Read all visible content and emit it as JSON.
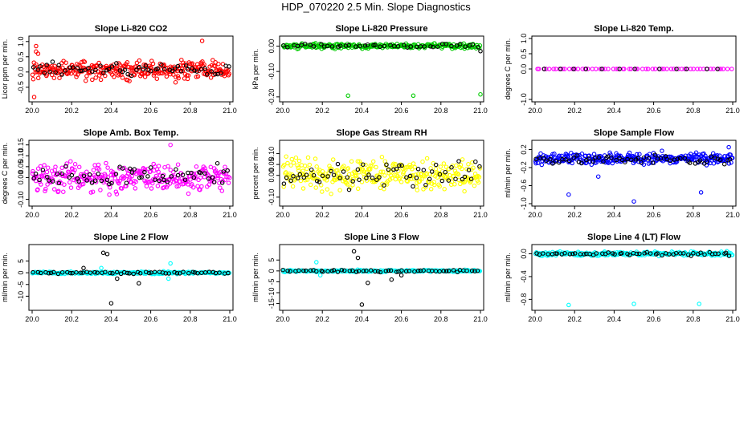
{
  "title": "HDP_070220  2.5 Min. Slope Diagnostics",
  "colors": {
    "red": "#ff0000",
    "green": "#00cc00",
    "magenta": "#ff00ff",
    "yellow": "#ffff00",
    "blue": "#0000ff",
    "cyan": "#00ffff",
    "black": "#000000"
  },
  "chart_data": [
    {
      "type": "scatter",
      "title": "Slope Li-820 CO2",
      "ylabel": "Licor ppm per min.",
      "xlim": [
        20.0,
        21.0
      ],
      "ylim": [
        -0.9,
        1.1
      ],
      "xticks": [
        "20.0",
        "20.2",
        "20.4",
        "20.6",
        "20.8",
        "21.0"
      ],
      "yticks": [
        "-0.5",
        "0.0",
        "0.5",
        "1.0"
      ],
      "series": [
        {
          "color": "red",
          "center": 0.05,
          "spread": 0.22,
          "n": 300,
          "outliers": [
            [
              20.01,
              -0.82
            ],
            [
              20.02,
              0.67
            ],
            [
              20.03,
              0.6
            ],
            [
              20.86,
              1.02
            ],
            [
              20.02,
              0.85
            ]
          ]
        },
        {
          "color": "black",
          "center": 0.1,
          "spread": 0.16,
          "n": 60,
          "outliers": []
        }
      ]
    },
    {
      "type": "scatter",
      "title": "Slope Li-820 Pressure",
      "ylabel": "kPa per min.",
      "xlim": [
        20.0,
        21.0
      ],
      "ylim": [
        -0.21,
        0.03
      ],
      "xticks": [
        "20.0",
        "20.2",
        "20.4",
        "20.6",
        "20.8",
        "21.0"
      ],
      "yticks": [
        "-0.20",
        "-0.10",
        "0.00"
      ],
      "series": [
        {
          "color": "green",
          "center": 0.0,
          "spread": 0.007,
          "n": 240,
          "outliers": [
            [
              20.33,
              -0.195
            ],
            [
              20.66,
              -0.195
            ],
            [
              21.0,
              -0.19
            ]
          ]
        },
        {
          "color": "black",
          "center": 0.0,
          "spread": 0.006,
          "n": 45,
          "outliers": [
            [
              21.0,
              -0.02
            ]
          ]
        }
      ]
    },
    {
      "type": "scatter",
      "title": "Slope Li-820 Temp.",
      "ylabel": "degrees C per min.",
      "xlim": [
        20.0,
        21.0
      ],
      "ylim": [
        -1.0,
        1.0
      ],
      "xticks": [
        "20.0",
        "20.2",
        "20.4",
        "20.6",
        "20.8",
        "21.0"
      ],
      "yticks": [
        "-1.0",
        "0.0",
        "0.5",
        "1.0"
      ],
      "series": [
        {
          "color": "magenta",
          "center": 0.0,
          "spread": 0.0,
          "n": 60,
          "outliers": []
        },
        {
          "color": "black",
          "center": 0.0,
          "spread": 0.0,
          "n": 12,
          "outliers": []
        }
      ]
    },
    {
      "type": "scatter",
      "title": "Slope Amb. Box Temp.",
      "ylabel": "degrees C per min.",
      "xlim": [
        20.0,
        21.0
      ],
      "ylim": [
        -0.12,
        0.16
      ],
      "xticks": [
        "20.0",
        "20.2",
        "20.4",
        "20.6",
        "20.8",
        "21.0"
      ],
      "yticks": [
        "-0.10",
        "0.00",
        "0.05",
        "0.10",
        "0.15"
      ],
      "series": [
        {
          "color": "magenta",
          "center": 0.0,
          "spread": 0.045,
          "n": 300,
          "outliers": [
            [
              20.7,
              0.15
            ]
          ]
        },
        {
          "color": "black",
          "center": 0.005,
          "spread": 0.035,
          "n": 60,
          "outliers": []
        }
      ]
    },
    {
      "type": "scatter",
      "title": "Slope Gas Stream RH",
      "ylabel": "percent per min.",
      "xlim": [
        20.0,
        21.0
      ],
      "ylim": [
        -0.13,
        0.15
      ],
      "xticks": [
        "20.0",
        "20.2",
        "20.4",
        "20.6",
        "20.8",
        "21.0"
      ],
      "yticks": [
        "-0.10",
        "0.00",
        "0.05",
        "0.10"
      ],
      "series": [
        {
          "color": "yellow",
          "center": 0.0,
          "spread": 0.05,
          "n": 300,
          "outliers": []
        },
        {
          "color": "black",
          "center": 0.0,
          "spread": 0.045,
          "n": 60,
          "outliers": []
        }
      ]
    },
    {
      "type": "scatter",
      "title": "Slope Sample Flow",
      "ylabel": "ml/min per min.",
      "xlim": [
        20.0,
        21.0
      ],
      "ylim": [
        -1.0,
        0.35
      ],
      "xticks": [
        "20.0",
        "20.2",
        "20.4",
        "20.6",
        "20.8",
        "21.0"
      ],
      "yticks": [
        "-1.0",
        "-0.6",
        "-0.2",
        "0.2"
      ],
      "series": [
        {
          "color": "blue",
          "center": 0.0,
          "spread": 0.09,
          "n": 300,
          "outliers": [
            [
              20.17,
              -0.8
            ],
            [
              20.5,
              -0.95
            ],
            [
              20.84,
              -0.75
            ],
            [
              20.32,
              -0.4
            ],
            [
              20.98,
              0.25
            ]
          ]
        },
        {
          "color": "black",
          "center": -0.02,
          "spread": 0.07,
          "n": 60,
          "outliers": []
        }
      ]
    },
    {
      "type": "scatter",
      "title": "Slope Line 2 Flow",
      "ylabel": "ml/min per min.",
      "xlim": [
        20.0,
        21.0
      ],
      "ylim": [
        -15.0,
        11.0
      ],
      "xticks": [
        "20.0",
        "20.2",
        "20.4",
        "20.6",
        "20.8",
        "21.0"
      ],
      "yticks": [
        "-10",
        "-5",
        "0",
        "5"
      ],
      "series": [
        {
          "color": "cyan",
          "center": 0.0,
          "spread": 0.35,
          "n": 220,
          "outliers": [
            [
              20.7,
              4.0
            ],
            [
              20.69,
              -2.5
            ],
            [
              20.35,
              2.0
            ]
          ]
        },
        {
          "color": "black",
          "center": 0.0,
          "spread": 0.35,
          "n": 55,
          "outliers": [
            [
              20.36,
              8.5
            ],
            [
              20.38,
              8.0
            ],
            [
              20.4,
              -13.0
            ],
            [
              20.43,
              -2.5
            ],
            [
              20.54,
              -4.5
            ],
            [
              20.26,
              2.0
            ]
          ]
        }
      ]
    },
    {
      "type": "scatter",
      "title": "Slope Line 3 Flow",
      "ylabel": "ml/min per min.",
      "xlim": [
        20.0,
        21.0
      ],
      "ylim": [
        -17.0,
        11.0
      ],
      "xticks": [
        "20.0",
        "20.2",
        "20.4",
        "20.6",
        "20.8",
        "21.0"
      ],
      "yticks": [
        "-15",
        "-10",
        "-5",
        "0",
        "5"
      ],
      "series": [
        {
          "color": "cyan",
          "center": 0.0,
          "spread": 0.35,
          "n": 220,
          "outliers": [
            [
              20.17,
              4.0
            ],
            [
              20.19,
              -2.0
            ]
          ]
        },
        {
          "color": "black",
          "center": 0.0,
          "spread": 0.35,
          "n": 55,
          "outliers": [
            [
              20.36,
              9.0
            ],
            [
              20.38,
              6.0
            ],
            [
              20.4,
              -15.5
            ],
            [
              20.43,
              -5.5
            ],
            [
              20.55,
              -4.0
            ],
            [
              20.6,
              -2.0
            ]
          ]
        }
      ]
    },
    {
      "type": "scatter",
      "title": "Slope Line 4 (LT) Flow",
      "ylabel": "ml/min per min.",
      "xlim": [
        20.0,
        21.0
      ],
      "ylim": [
        -0.95,
        0.12
      ],
      "xticks": [
        "20.0",
        "20.2",
        "20.4",
        "20.6",
        "20.8",
        "21.0"
      ],
      "yticks": [
        "-0.8",
        "-0.4",
        "0.0"
      ],
      "series": [
        {
          "color": "cyan",
          "center": 0.0,
          "spread": 0.025,
          "n": 240,
          "outliers": [
            [
              20.17,
              -0.9
            ],
            [
              20.5,
              -0.88
            ],
            [
              20.83,
              -0.88
            ]
          ]
        },
        {
          "color": "black",
          "center": 0.0,
          "spread": 0.02,
          "n": 55,
          "outliers": []
        }
      ]
    }
  ]
}
